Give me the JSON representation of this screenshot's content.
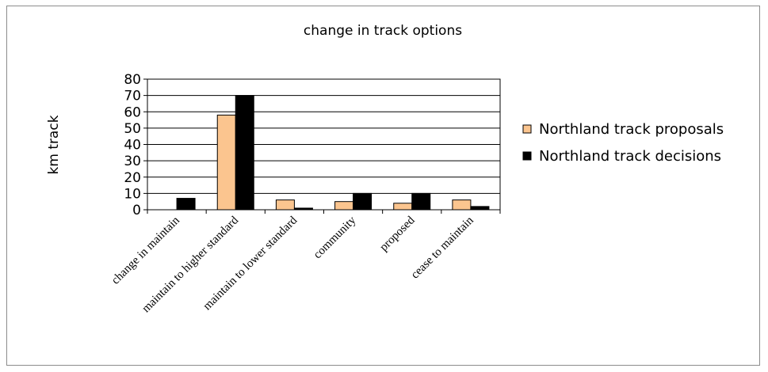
{
  "chart_data": {
    "type": "bar",
    "title": "change in track options",
    "xlabel": "",
    "ylabel": "km track",
    "ylim": [
      0,
      80
    ],
    "yticks": [
      0,
      10,
      20,
      30,
      40,
      50,
      60,
      70,
      80
    ],
    "grid": true,
    "legend_position": "right",
    "categories": [
      "change in maintain",
      "maintain to higher standard",
      "maintain to lower standard",
      "community",
      "proposed",
      "cease to maintain"
    ],
    "series": [
      {
        "name": "Northland track proposals",
        "color": "#fbc58f",
        "values": [
          0,
          58,
          6,
          5,
          4,
          6
        ]
      },
      {
        "name": "Northland track decisions",
        "color": "#000000",
        "values": [
          7,
          70,
          1,
          10,
          10,
          2
        ]
      }
    ]
  }
}
